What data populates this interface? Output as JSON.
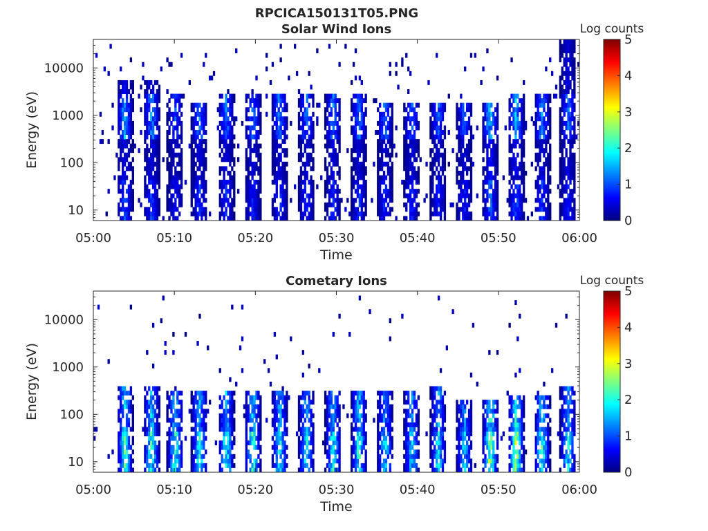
{
  "figure_title": "RPCICA150131T05.PNG",
  "colorscale": [
    "#00007f",
    "#0000ff",
    "#007fff",
    "#00ffff",
    "#7fff7f",
    "#ffff00",
    "#ff7f00",
    "#ff0000",
    "#7f0000"
  ],
  "chart_data": [
    {
      "type": "heatmap",
      "title": "Solar Wind Ions",
      "xlabel": "Time",
      "ylabel": "Energy (eV)",
      "x_range": [
        "05:00",
        "06:00"
      ],
      "x_ticks": [
        "05:00",
        "05:10",
        "05:20",
        "05:30",
        "05:40",
        "05:50",
        "06:00"
      ],
      "y_scale": "log",
      "y_range": [
        6,
        40000
      ],
      "y_ticks": [
        10,
        100,
        1000,
        10000
      ],
      "y_tick_labels": [
        "10",
        "100",
        "1000",
        "10000"
      ],
      "colorbar": {
        "label": "Log counts",
        "range": [
          0,
          5
        ],
        "ticks": [
          "0",
          "1",
          "2",
          "3",
          "4",
          "5"
        ]
      },
      "grid": false,
      "bursts": [
        {
          "t": 3.9,
          "e_lo": 6,
          "e_hi": 6000,
          "peak": 1.8
        },
        {
          "t": 7.2,
          "e_lo": 6,
          "e_hi": 5000,
          "peak": 1.7
        },
        {
          "t": 10.1,
          "e_lo": 6,
          "e_hi": 3000,
          "peak": 1.2
        },
        {
          "t": 13.1,
          "e_lo": 6,
          "e_hi": 2000,
          "peak": 1.5
        },
        {
          "t": 16.4,
          "e_lo": 6,
          "e_hi": 3000,
          "peak": 1.5
        },
        {
          "t": 19.7,
          "e_lo": 6,
          "e_hi": 3000,
          "peak": 1.4
        },
        {
          "t": 23.0,
          "e_lo": 6,
          "e_hi": 3000,
          "peak": 1.5
        },
        {
          "t": 26.3,
          "e_lo": 6,
          "e_hi": 3000,
          "peak": 1.4
        },
        {
          "t": 29.6,
          "e_lo": 6,
          "e_hi": 3000,
          "peak": 1.5
        },
        {
          "t": 32.8,
          "e_lo": 6,
          "e_hi": 3000,
          "peak": 1.5
        },
        {
          "t": 36.0,
          "e_lo": 6,
          "e_hi": 2000,
          "peak": 1.4
        },
        {
          "t": 39.3,
          "e_lo": 6,
          "e_hi": 2000,
          "peak": 1.4
        },
        {
          "t": 42.6,
          "e_lo": 6,
          "e_hi": 2000,
          "peak": 1.3
        },
        {
          "t": 45.8,
          "e_lo": 6,
          "e_hi": 2000,
          "peak": 1.3
        },
        {
          "t": 49.0,
          "e_lo": 6,
          "e_hi": 2000,
          "peak": 2.0
        },
        {
          "t": 52.2,
          "e_lo": 6,
          "e_hi": 3000,
          "peak": 1.9
        },
        {
          "t": 55.4,
          "e_lo": 6,
          "e_hi": 3000,
          "peak": 1.6
        },
        {
          "t": 58.6,
          "e_lo": 6,
          "e_hi": 40000,
          "peak": 1.4
        }
      ]
    },
    {
      "type": "heatmap",
      "title": "Cometary Ions",
      "xlabel": "Time",
      "ylabel": "Energy (eV)",
      "x_range": [
        "05:00",
        "06:00"
      ],
      "x_ticks": [
        "05:00",
        "05:10",
        "05:20",
        "05:30",
        "05:40",
        "05:50",
        "06:00"
      ],
      "y_scale": "log",
      "y_range": [
        6,
        40000
      ],
      "y_ticks": [
        10,
        100,
        1000,
        10000
      ],
      "y_tick_labels": [
        "10",
        "100",
        "1000",
        "10000"
      ],
      "colorbar": {
        "label": "Log counts",
        "range": [
          0,
          5
        ],
        "ticks": [
          "0",
          "1",
          "2",
          "3",
          "4",
          "5"
        ]
      },
      "grid": false,
      "bursts": [
        {
          "t": 3.9,
          "e_lo": 6,
          "e_hi": 400,
          "peak": 2.5
        },
        {
          "t": 7.2,
          "e_lo": 6,
          "e_hi": 400,
          "peak": 2.4
        },
        {
          "t": 10.1,
          "e_lo": 6,
          "e_hi": 300,
          "peak": 2.3
        },
        {
          "t": 13.1,
          "e_lo": 6,
          "e_hi": 300,
          "peak": 2.2
        },
        {
          "t": 16.4,
          "e_lo": 6,
          "e_hi": 300,
          "peak": 2.3
        },
        {
          "t": 19.7,
          "e_lo": 6,
          "e_hi": 300,
          "peak": 2.4
        },
        {
          "t": 23.0,
          "e_lo": 6,
          "e_hi": 300,
          "peak": 2.2
        },
        {
          "t": 26.3,
          "e_lo": 6,
          "e_hi": 300,
          "peak": 2.1
        },
        {
          "t": 29.6,
          "e_lo": 6,
          "e_hi": 300,
          "peak": 2.2
        },
        {
          "t": 32.8,
          "e_lo": 6,
          "e_hi": 300,
          "peak": 2.3
        },
        {
          "t": 36.0,
          "e_lo": 6,
          "e_hi": 300,
          "peak": 2.0
        },
        {
          "t": 39.3,
          "e_lo": 6,
          "e_hi": 300,
          "peak": 1.9
        },
        {
          "t": 42.6,
          "e_lo": 6,
          "e_hi": 400,
          "peak": 2.0
        },
        {
          "t": 45.8,
          "e_lo": 6,
          "e_hi": 200,
          "peak": 1.9
        },
        {
          "t": 49.0,
          "e_lo": 6,
          "e_hi": 200,
          "peak": 3.0
        },
        {
          "t": 52.2,
          "e_lo": 6,
          "e_hi": 250,
          "peak": 2.9
        },
        {
          "t": 55.4,
          "e_lo": 6,
          "e_hi": 250,
          "peak": 2.4
        },
        {
          "t": 58.6,
          "e_lo": 6,
          "e_hi": 400,
          "peak": 2.0
        }
      ]
    }
  ]
}
